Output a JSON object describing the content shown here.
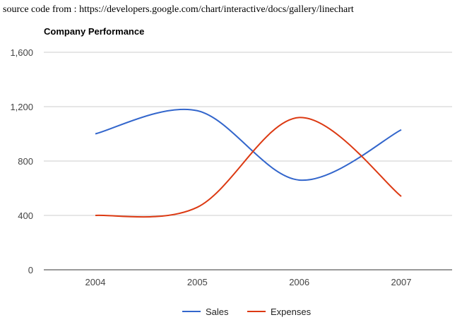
{
  "page": {
    "source_note": "source code from : https://developers.google.com/chart/interactive/docs/gallery/linechart"
  },
  "chart_data": {
    "type": "line",
    "title": "Company Performance",
    "xlabel": "",
    "ylabel": "",
    "categories": [
      "2004",
      "2005",
      "2006",
      "2007"
    ],
    "series": [
      {
        "name": "Sales",
        "values": [
          1000,
          1170,
          660,
          1030
        ],
        "color": "#3366cc"
      },
      {
        "name": "Expenses",
        "values": [
          400,
          460,
          1120,
          540
        ],
        "color": "#dc3912"
      }
    ],
    "ylim": [
      0,
      1600
    ],
    "yticks": [
      0,
      400,
      800,
      1200,
      1600
    ],
    "ytick_labels": [
      "0",
      "400",
      "800",
      "1,200",
      "1,600"
    ],
    "grid": true,
    "legend": "bottom",
    "curve": "smooth"
  }
}
